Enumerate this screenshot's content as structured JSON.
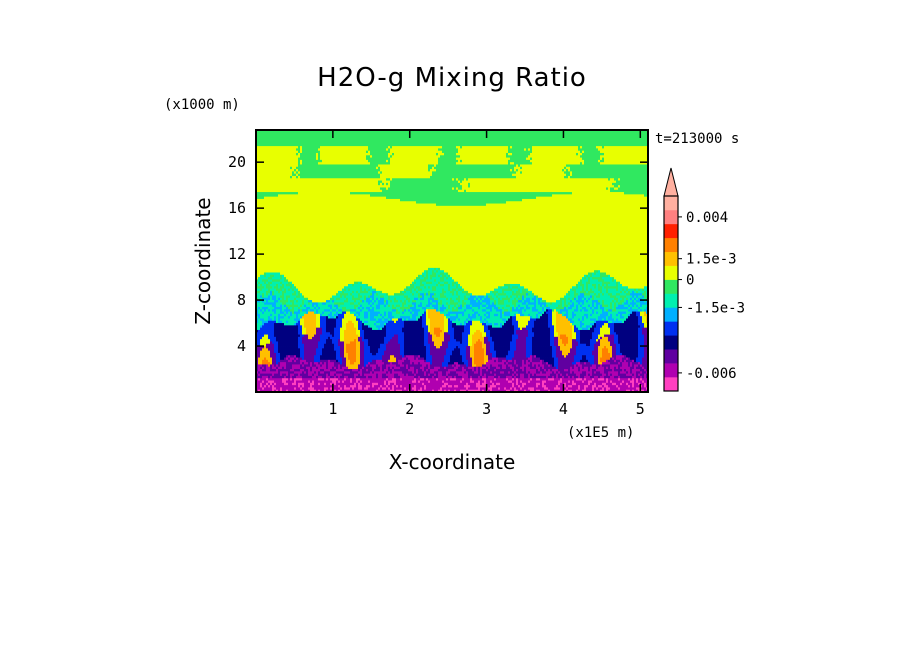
{
  "chart_data": {
    "type": "heatmap",
    "title": "H2O-g Mixing Ratio",
    "xlabel": "X-coordinate",
    "ylabel": "Z-coordinate",
    "x_unit": "(x1E5 m)",
    "y_unit": "(x1000 m)",
    "time_label": "t=213000 s",
    "xlim": [
      0,
      5.1
    ],
    "ylim": [
      0,
      22.8
    ],
    "x_ticks": [
      1,
      2,
      3,
      4,
      5
    ],
    "y_ticks": [
      4,
      8,
      12,
      16,
      20
    ],
    "x_tick_labels": [
      "1",
      "2",
      "3",
      "4",
      "5"
    ],
    "y_tick_labels": [
      "4",
      "8",
      "12",
      "16",
      "20"
    ],
    "colorbar": {
      "colors": [
        "#ff40c0",
        "#b000b0",
        "#6000a0",
        "#000080",
        "#0030f0",
        "#00b0ff",
        "#00f0b0",
        "#30e860",
        "#e8ff00",
        "#ffc000",
        "#ff8000",
        "#ff2000",
        "#ff8080",
        "#ffb0a0"
      ],
      "labels": [
        {
          "text": "0.004",
          "index": 12.5
        },
        {
          "text": "1.5e-3",
          "index": 9.5
        },
        {
          "text": "0",
          "index": 8
        },
        {
          "text": "-1.5e-3",
          "index": 6
        },
        {
          "text": "-0.006",
          "index": 1.3
        }
      ]
    },
    "regions": [
      {
        "z_top": 22.8,
        "value_level": "green"
      },
      {
        "z_range": [
          19.5,
          21.5
        ],
        "value_level": "yellow"
      },
      {
        "z_range": [
          9,
          17.5
        ],
        "value_level": "yellow"
      },
      {
        "z_range": [
          5,
          9
        ],
        "value_level": "cyan/green"
      },
      {
        "z_range": [
          0,
          5
        ],
        "value_level": "blue/purple"
      }
    ]
  }
}
